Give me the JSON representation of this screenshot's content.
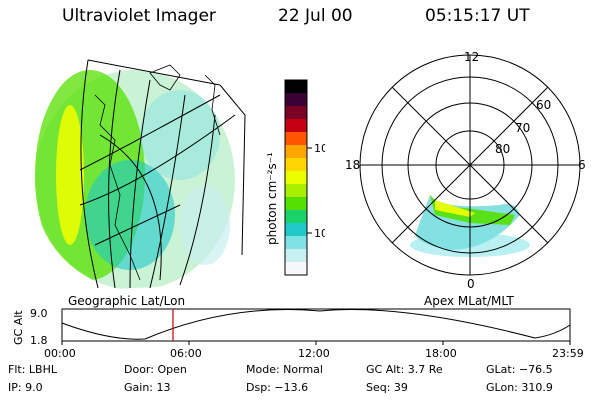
{
  "header": {
    "title": "Ultraviolet Imager",
    "date": "22 Jul 00",
    "time": "05:15:17 UT"
  },
  "left_panel": {
    "caption": "Geographic Lat/Lon"
  },
  "colorbar": {
    "unit_label": "photon cm⁻²s⁻¹",
    "ticks": [
      "100",
      "10"
    ],
    "colors": [
      "#000000",
      "#3b0033",
      "#7a0024",
      "#c40012",
      "#ff5500",
      "#ffa500",
      "#ffd400",
      "#eaff00",
      "#a8f000",
      "#55e000",
      "#19d26a",
      "#20c8c8",
      "#7fe3e6",
      "#c8f0f0",
      "#f4f8f8"
    ]
  },
  "right_panel": {
    "caption": "Apex MLat/MLT",
    "mlt_labels": [
      "12",
      "18",
      "6",
      "0"
    ],
    "mlat_labels": [
      "60",
      "70",
      "80"
    ]
  },
  "alt_plot": {
    "ylabel": "GC Alt",
    "yticks": [
      "9.0",
      "1.8"
    ],
    "xticks": [
      "00:00",
      "06:00",
      "12:00",
      "18:00",
      "23:59"
    ],
    "marker_time": "05:15"
  },
  "info": {
    "row1": {
      "flt": "Flt: LBHL",
      "door": "Door: Open",
      "mode": "Mode: Normal",
      "gcalt": "GC Alt: 3.7 Re",
      "glat": "GLat: −76.5"
    },
    "row2": {
      "ip": "IP: 9.0",
      "gain": "Gain: 13",
      "dsp": "Dsp: −13.6",
      "seq": "Seq: 39",
      "glon": "GLon: 310.9"
    }
  },
  "colors": {
    "marker": "#c00000",
    "aurora_high": "#eaff00",
    "aurora_mid": "#55e000",
    "aurora_low": "#20c8c8"
  }
}
